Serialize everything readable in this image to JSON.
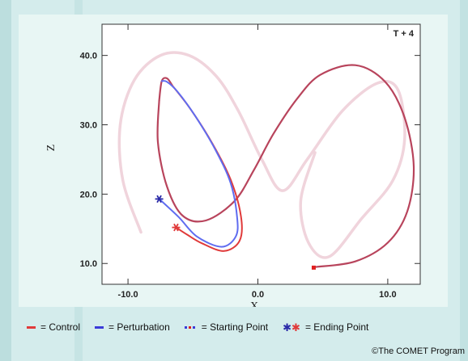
{
  "chart_data": {
    "type": "line",
    "title": "T + 4",
    "xlabel": "X",
    "ylabel": "Z",
    "xlim": [
      -12.0,
      12.5
    ],
    "ylim": [
      7.0,
      44.5
    ],
    "x_ticks": [
      "-10.0",
      "0.0",
      "10.0"
    ],
    "y_ticks": [
      "10.0",
      "20.0",
      "30.0",
      "40.0"
    ],
    "grid": false,
    "colors": {
      "control": "#e03a3a",
      "perturbation": "#5f6cf0",
      "overlap": "#b8445c",
      "history": "#f0d4dc",
      "start": "#e02020",
      "end_control": "#e03a3a",
      "end_perturbation": "#2a2aa8"
    },
    "series": [
      {
        "role": "history",
        "x": [
          -9,
          -10.4,
          -10.6,
          -9.5,
          -7.5,
          -5.3,
          -3.2,
          -1.5,
          0.3,
          1.9,
          3.8,
          6.5,
          9.2,
          10.8,
          11.3,
          10.4,
          8,
          5.5,
          3.9,
          3.3,
          4.4
        ],
        "y": [
          14.5,
          22,
          30,
          36.5,
          40,
          40,
          37,
          32,
          25,
          20.5,
          25,
          32,
          36,
          35,
          28,
          22,
          16.5,
          11,
          13,
          19,
          26
        ]
      },
      {
        "role": "overlap",
        "x": [
          4.5,
          7.5,
          10,
          11.5,
          12,
          11.3,
          9.8,
          7.5,
          4.8,
          3,
          1.2,
          -0.3,
          -1.8,
          -4,
          -5.8,
          -7,
          -7.7,
          -7.6
        ],
        "y": [
          9.5,
          10.3,
          13,
          17.5,
          24,
          31,
          36.2,
          38.6,
          37.2,
          33.7,
          28.7,
          23.5,
          19,
          16.2,
          16.9,
          21.1,
          27.5,
          33.5
        ]
      },
      {
        "role": "overlap",
        "x": [
          -7.6,
          -7.4,
          -7,
          -6.6
        ],
        "y": [
          33.5,
          36.3,
          36.7,
          35.7
        ]
      },
      {
        "name": "Control",
        "role": "control",
        "x": [
          -6.6,
          -5.2,
          -3.5,
          -2.1,
          -1.3,
          -1.4,
          -2.6,
          -4.3,
          -5.4,
          -6.3
        ],
        "y": [
          35.7,
          32.3,
          27.3,
          22.1,
          16.8,
          13.3,
          11.8,
          12.9,
          14.1,
          15.2
        ]
      },
      {
        "name": "Perturbation",
        "role": "perturbation",
        "x": [
          -7.4,
          -7,
          -6.2,
          -4.8,
          -3.3,
          -2.1,
          -1.6,
          -1.7,
          -2.8,
          -4.7,
          -6.1,
          -7.6
        ],
        "y": [
          36.3,
          36.2,
          34.8,
          31.2,
          26.5,
          21.6,
          16.7,
          13.9,
          12.4,
          13.9,
          16.7,
          19.3
        ]
      }
    ],
    "points": [
      {
        "role": "start",
        "x": 4.3,
        "y": 9.4
      },
      {
        "role": "end_control",
        "x": -6.3,
        "y": 15.2
      },
      {
        "role": "end_perturbation",
        "x": -7.6,
        "y": 19.3
      }
    ]
  },
  "legend": {
    "control": "= Control",
    "perturbation": "= Perturbation",
    "start": "= Starting Point",
    "end": "= Ending Point",
    "end_symbol": "✱"
  },
  "copyright": "©The COMET Program"
}
